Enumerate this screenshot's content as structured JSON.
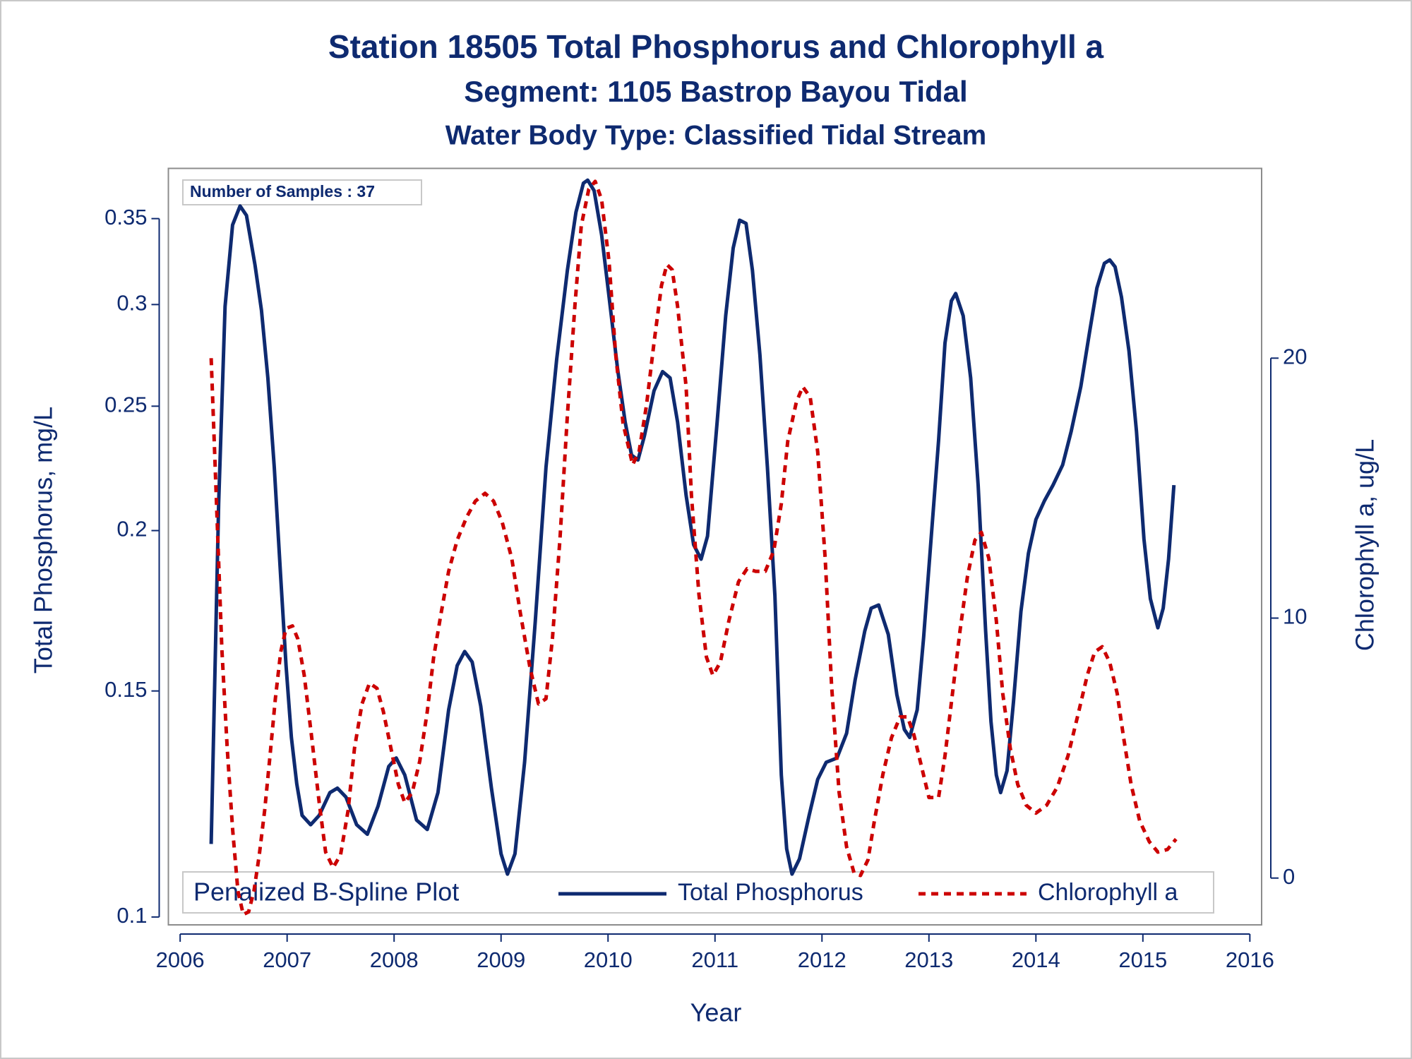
{
  "chart_data": {
    "type": "line",
    "title": "Station 18505  Total Phosphorus and Chlorophyll a",
    "subtitle": "Segment: 1105  Bastrop Bayou Tidal",
    "subtitle2": "Water Body Type: Classified Tidal Stream",
    "annotation": "Number of Samples : 37",
    "legend_title": "Penalized B-Spline Plot",
    "xlabel": "Year",
    "ylabel": "Total Phosphorus, mg/L",
    "y2label": "Chlorophyll a, ug/L",
    "xlim": [
      2005.89,
      2016.11
    ],
    "xticks": [
      2006,
      2007,
      2008,
      2009,
      2010,
      2011,
      2012,
      2013,
      2014,
      2015,
      2016
    ],
    "ylim": [
      0.0986,
      0.383
    ],
    "ylog": true,
    "yticks": [
      0.1,
      0.15,
      0.2,
      0.25,
      0.3,
      0.35
    ],
    "y2lim": [
      -1.8,
      27.3
    ],
    "y2ticks": [
      0,
      10,
      20
    ],
    "legend": "bottom",
    "series": [
      {
        "name": "Total Phosphorus",
        "color": "#0e2a70",
        "dash": false,
        "x": [
          2006.29,
          2006.36,
          2006.42,
          2006.49,
          2006.56,
          2006.62,
          2006.7,
          2006.76,
          2006.82,
          2006.88,
          2006.94,
          2006.99,
          2007.04,
          2007.09,
          2007.14,
          2007.22,
          2007.3,
          2007.4,
          2007.47,
          2007.55,
          2007.65,
          2007.75,
          2007.85,
          2007.95,
          2008.02,
          2008.1,
          2008.21,
          2008.31,
          2008.41,
          2008.51,
          2008.59,
          2008.66,
          2008.73,
          2008.81,
          2008.91,
          2009.0,
          2009.06,
          2009.13,
          2009.22,
          2009.32,
          2009.42,
          2009.52,
          2009.62,
          2009.7,
          2009.77,
          2009.81,
          2009.87,
          2009.94,
          2010.01,
          2010.09,
          2010.16,
          2010.22,
          2010.28,
          2010.34,
          2010.43,
          2010.51,
          2010.58,
          2010.65,
          2010.73,
          2010.8,
          2010.87,
          2010.93,
          2011.02,
          2011.1,
          2011.17,
          2011.23,
          2011.29,
          2011.35,
          2011.42,
          2011.49,
          2011.56,
          2011.62,
          2011.67,
          2011.72,
          2011.79,
          2011.88,
          2011.96,
          2012.04,
          2012.14,
          2012.23,
          2012.31,
          2012.4,
          2012.46,
          2012.53,
          2012.62,
          2012.7,
          2012.77,
          2012.82,
          2012.89,
          2012.95,
          2013.02,
          2013.09,
          2013.15,
          2013.21,
          2013.25,
          2013.32,
          2013.39,
          2013.46,
          2013.53,
          2013.58,
          2013.63,
          2013.67,
          2013.73,
          2013.79,
          2013.86,
          2013.93,
          2014.0,
          2014.08,
          2014.16,
          2014.25,
          2014.33,
          2014.42,
          2014.5,
          2014.57,
          2014.64,
          2014.69,
          2014.74,
          2014.8,
          2014.87,
          2014.94,
          2015.01,
          2015.07,
          2015.14,
          2015.19,
          2015.24,
          2015.29
        ],
        "values": [
          0.114,
          0.21,
          0.299,
          0.346,
          0.358,
          0.352,
          0.322,
          0.297,
          0.263,
          0.224,
          0.184,
          0.157,
          0.138,
          0.127,
          0.12,
          0.118,
          0.12,
          0.125,
          0.126,
          0.124,
          0.118,
          0.116,
          0.122,
          0.131,
          0.133,
          0.129,
          0.119,
          0.117,
          0.125,
          0.145,
          0.157,
          0.161,
          0.158,
          0.146,
          0.126,
          0.112,
          0.108,
          0.112,
          0.132,
          0.17,
          0.224,
          0.272,
          0.319,
          0.354,
          0.373,
          0.375,
          0.368,
          0.34,
          0.304,
          0.267,
          0.243,
          0.229,
          0.227,
          0.237,
          0.257,
          0.266,
          0.263,
          0.243,
          0.213,
          0.195,
          0.19,
          0.198,
          0.243,
          0.294,
          0.332,
          0.349,
          0.347,
          0.319,
          0.274,
          0.224,
          0.178,
          0.129,
          0.113,
          0.108,
          0.111,
          0.12,
          0.128,
          0.132,
          0.133,
          0.139,
          0.153,
          0.167,
          0.174,
          0.175,
          0.166,
          0.149,
          0.14,
          0.138,
          0.145,
          0.165,
          0.197,
          0.235,
          0.28,
          0.302,
          0.306,
          0.294,
          0.263,
          0.217,
          0.167,
          0.142,
          0.129,
          0.125,
          0.13,
          0.147,
          0.173,
          0.192,
          0.204,
          0.211,
          0.217,
          0.225,
          0.239,
          0.259,
          0.285,
          0.309,
          0.323,
          0.325,
          0.321,
          0.304,
          0.276,
          0.239,
          0.197,
          0.177,
          0.168,
          0.174,
          0.19,
          0.217
        ]
      },
      {
        "name": "Chlorophyll a",
        "color": "#cc0000",
        "dash": true,
        "axis": "y2",
        "x": [
          2006.29,
          2006.34,
          2006.39,
          2006.44,
          2006.49,
          2006.54,
          2006.59,
          2006.64,
          2006.69,
          2006.74,
          2006.79,
          2006.84,
          2006.89,
          2006.94,
          2006.99,
          2007.05,
          2007.1,
          2007.16,
          2007.23,
          2007.3,
          2007.36,
          2007.43,
          2007.5,
          2007.57,
          2007.63,
          2007.7,
          2007.77,
          2007.84,
          2007.9,
          2007.97,
          2008.04,
          2008.1,
          2008.17,
          2008.24,
          2008.31,
          2008.37,
          2008.44,
          2008.51,
          2008.59,
          2008.68,
          2008.76,
          2008.85,
          2008.93,
          2009.01,
          2009.1,
          2009.18,
          2009.27,
          2009.35,
          2009.42,
          2009.48,
          2009.55,
          2009.62,
          2009.69,
          2009.75,
          2009.82,
          2009.88,
          2009.94,
          2010.01,
          2010.07,
          2010.14,
          2010.23,
          2010.29,
          2010.36,
          2010.43,
          2010.5,
          2010.55,
          2010.6,
          2010.65,
          2010.73,
          2010.78,
          2010.85,
          2010.92,
          2010.98,
          2011.05,
          2011.13,
          2011.22,
          2011.3,
          2011.38,
          2011.47,
          2011.55,
          2011.62,
          2011.68,
          2011.76,
          2011.82,
          2011.89,
          2011.96,
          2012.03,
          2012.09,
          2012.16,
          2012.23,
          2012.3,
          2012.36,
          2012.43,
          2012.49,
          2012.57,
          2012.65,
          2012.73,
          2012.8,
          2012.86,
          2012.93,
          2013.0,
          2013.09,
          2013.15,
          2013.22,
          2013.29,
          2013.36,
          2013.43,
          2013.49,
          2013.56,
          2013.63,
          2013.69,
          2013.76,
          2013.83,
          2013.91,
          2014.0,
          2014.1,
          2014.2,
          2014.3,
          2014.4,
          2014.48,
          2014.55,
          2014.62,
          2014.69,
          2014.76,
          2014.82,
          2014.89,
          2014.97,
          2015.06,
          2015.14,
          2015.23,
          2015.31
        ],
        "values": [
          20.0,
          14.4,
          8.8,
          5.0,
          1.9,
          -0.5,
          -1.4,
          -1.3,
          -0.5,
          0.9,
          2.6,
          4.7,
          6.9,
          8.7,
          9.6,
          9.7,
          9.2,
          7.8,
          5.4,
          2.9,
          1.0,
          0.4,
          0.9,
          2.6,
          5.0,
          6.7,
          7.5,
          7.3,
          6.4,
          5.0,
          3.6,
          2.9,
          3.3,
          4.5,
          6.4,
          8.5,
          10.2,
          11.8,
          13.0,
          13.9,
          14.5,
          14.8,
          14.5,
          13.7,
          12.3,
          10.2,
          8.1,
          6.7,
          6.9,
          9.2,
          13.0,
          17.8,
          22.0,
          25.1,
          26.5,
          26.8,
          26.1,
          23.7,
          20.2,
          17.5,
          15.9,
          16.4,
          18.2,
          20.6,
          22.8,
          23.6,
          23.4,
          22.0,
          18.9,
          14.7,
          10.9,
          8.5,
          7.8,
          8.3,
          9.9,
          11.4,
          11.9,
          11.8,
          11.8,
          12.6,
          14.4,
          16.8,
          18.3,
          18.9,
          18.5,
          16.4,
          12.3,
          7.4,
          3.3,
          1.2,
          0.2,
          0.1,
          0.7,
          2.2,
          4.0,
          5.4,
          6.2,
          6.2,
          5.5,
          4.3,
          3.1,
          3.1,
          4.7,
          7.1,
          9.5,
          11.6,
          13.0,
          13.3,
          12.3,
          9.9,
          7.1,
          5.0,
          3.6,
          2.8,
          2.5,
          2.8,
          3.5,
          4.7,
          6.4,
          7.8,
          8.7,
          8.9,
          8.3,
          7.1,
          5.4,
          3.6,
          2.2,
          1.4,
          1.0,
          1.1,
          1.5
        ]
      }
    ]
  }
}
